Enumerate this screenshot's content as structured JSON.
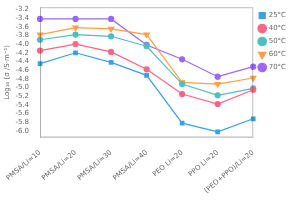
{
  "chart_data": {
    "type": "line",
    "categories": [
      "PMSA/Li=10",
      "PMSA/Li=20",
      "PMSA/Li=30",
      "PMSA/Li=40",
      "PEO Li=20",
      "PPO Li=20",
      "(PEO+PPO)/Li=20"
    ],
    "series": [
      {
        "name": "25°C",
        "marker": "square",
        "values": [
          -4.45,
          -4.2,
          -4.42,
          -4.72,
          -5.82,
          -6.02,
          -5.72
        ]
      },
      {
        "name": "40°C",
        "marker": "circle",
        "values": [
          -4.15,
          -4.0,
          -4.18,
          -4.58,
          -5.15,
          -5.38,
          -5.05
        ]
      },
      {
        "name": "50°C",
        "marker": "circle",
        "values": [
          -3.9,
          -3.78,
          -3.82,
          -4.05,
          -4.92,
          -5.18,
          -5.02
        ]
      },
      {
        "name": "60°C",
        "marker": "triangle_down",
        "values": [
          -3.78,
          -3.62,
          -3.65,
          -3.78,
          -4.88,
          -4.92,
          -4.78
        ]
      },
      {
        "name": "70°C",
        "marker": "circle",
        "values": [
          -3.42,
          -3.42,
          -3.42,
          -4.02,
          -4.35,
          -4.75,
          -4.52
        ]
      }
    ],
    "y_label": "Log₁₀ (σ /S·m⁻¹)",
    "ylim": [
      -6.15,
      -3.15
    ],
    "yticks": [
      -3.2,
      -3.4,
      -3.6,
      -3.8,
      {
        "value": -4.0,
        "label": "-4.0"
      },
      -4.2,
      -4.4,
      -4.6,
      -4.8,
      {
        "value": -5.0,
        "label": "-5.0"
      },
      -5.2,
      -5.4,
      -5.6,
      -5.8,
      {
        "value": -6.0,
        "label": "-6.0"
      }
    ],
    "line_style": "solid",
    "legend": "upper right",
    "grid": false
  }
}
